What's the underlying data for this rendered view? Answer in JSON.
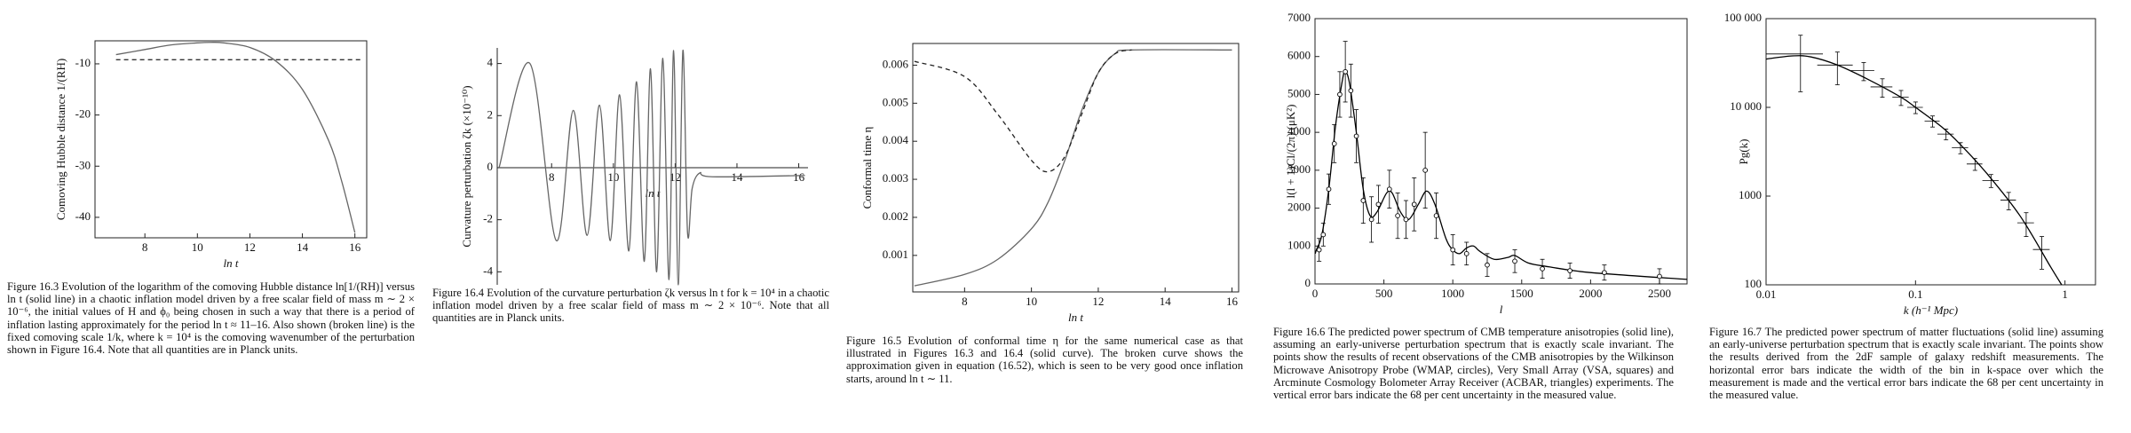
{
  "chart_data": [
    {
      "type": "line",
      "xlabel": "ln t",
      "ylabel": "Comoving Hubble distance 1/(RH)",
      "caption": "Figure 16.3 Evolution of the logarithm of the comoving Hubble distance ln[1/(RH)] versus ln t (solid line) in a chaotic inflation model driven by a free scalar field of mass m ∼ 2 × 10⁻⁶, the initial values of H and ϕ₀ being chosen in such a way that there is a period of inflation lasting approximately for the period ln t ≈ 11–16. Also shown (broken line) is the fixed comoving scale 1/k, where k = 10⁴ is the comoving wavenumber of the perturbation shown in Figure 16.4. Note that all quantities are in Planck units.",
      "xlim": [
        6.1,
        16.45
      ],
      "xticks": [
        8,
        10,
        12,
        14,
        16
      ],
      "ylim": [
        -44,
        -5.5
      ],
      "yticks": [
        -10,
        -20,
        -30,
        -40
      ],
      "series": [
        {
          "color": "#666666",
          "style": "solid",
          "x": [
            6.9,
            8,
            9,
            10,
            10.5,
            11,
            12,
            13,
            14,
            15,
            15.5,
            16
          ],
          "values": [
            -8.2,
            -7.2,
            -6.3,
            -5.9,
            -5.8,
            -5.9,
            -6.8,
            -9.5,
            -15,
            -25,
            -33,
            -43
          ]
        },
        {
          "color": "#333333",
          "style": "dashed",
          "x": [
            6.9,
            16.3
          ],
          "values": [
            -9.2,
            -9.2
          ]
        }
      ]
    },
    {
      "type": "line",
      "xlabel": "ln t",
      "ylabel": "Curvature perturbation ζk (×10⁻¹⁰)",
      "caption": "Figure 16.4 Evolution of the curvature perturbation ζk versus ln t for k = 10⁴ in a chaotic inflation model driven by a free scalar field of mass m ∼ 2 × 10⁻⁶. Note that all quantities are in Planck units.",
      "xlim": [
        6.24,
        16.3
      ],
      "xticks": [
        8,
        10,
        12,
        14,
        16
      ],
      "ylim": [
        -4.5,
        4.6
      ],
      "yticks": [
        4,
        2,
        0,
        -2,
        -4
      ],
      "series": [
        {
          "color": "#666666",
          "style": "solid",
          "x": [
            6.3,
            7.3,
            8.15,
            8.7,
            9.15,
            9.55,
            9.9,
            10.2,
            10.5,
            10.75,
            11.0,
            11.2,
            11.4,
            11.6,
            11.8,
            11.95,
            12.1,
            12.25,
            12.4,
            12.55,
            12.8,
            13.2,
            16.2
          ],
          "values": [
            0,
            4,
            -2.8,
            2.2,
            -2.6,
            2.4,
            -2.8,
            2.8,
            -3.2,
            3.3,
            -3.6,
            3.8,
            -4.0,
            4.2,
            -4.3,
            4.5,
            -4.5,
            4.5,
            -2.5,
            -0.8,
            -0.2,
            -0.35,
            -0.3
          ]
        }
      ]
    },
    {
      "type": "line",
      "xlabel": "ln t",
      "ylabel": "Conformal time η",
      "caption": "Figure 16.5 Evolution of conformal time η for the same numerical case as that illustrated in Figures 16.3 and 16.4 (solid curve). The broken curve shows the approximation given in equation (16.52), which is seen to be very good once inflation starts, around ln t ∼ 11.",
      "xlim": [
        6.45,
        16.2
      ],
      "xticks": [
        8,
        10,
        12,
        14,
        16
      ],
      "ylim": [
        4e-05,
        0.00657
      ],
      "yticks": [
        0.006,
        0.005,
        0.004,
        0.003,
        0.002,
        0.001
      ],
      "series": [
        {
          "color": "#666666",
          "style": "solid",
          "x": [
            6.5,
            8,
            9,
            10,
            10.5,
            11,
            11.5,
            12,
            12.5,
            13,
            16
          ],
          "values": [
            0.0002,
            0.0005,
            0.0009,
            0.0017,
            0.0024,
            0.0035,
            0.0048,
            0.0058,
            0.0063,
            0.0064,
            0.0064
          ]
        },
        {
          "color": "#222222",
          "style": "dashed",
          "x": [
            6.5,
            8,
            9,
            10,
            10.5,
            11,
            11.5,
            12,
            12.5,
            13
          ],
          "values": [
            0.0061,
            0.0057,
            0.0047,
            0.0035,
            0.0032,
            0.0036,
            0.0047,
            0.0058,
            0.0063,
            0.0064
          ]
        }
      ]
    },
    {
      "type": "line",
      "xlabel": "l",
      "ylabel": "l(l + 1)Cl/(2π)   (μK²)",
      "caption": "Figure 16.6 The predicted power spectrum of CMB temperature anisotropies (solid line), assuming an early-universe perturbation spectrum that is exactly scale invariant. The points show the results of recent observations of the CMB anisotropies by the Wilkinson Microwave Anisotropy Probe (WMAP, circles), Very Small Array (VSA, squares) and Arcminute Cosmology Bolometer Array Receiver (ACBAR, triangles) experiments. The vertical error bars indicate the 68 per cent uncertainty in the measured value.",
      "xlim": [
        0,
        2700
      ],
      "xticks": [
        0,
        500,
        1000,
        1500,
        2000,
        2500
      ],
      "ylim": [
        0,
        7000
      ],
      "yticks": [
        0,
        1000,
        2000,
        3000,
        4000,
        5000,
        6000,
        7000
      ],
      "series": [
        {
          "color": "#000000",
          "style": "solid",
          "x": [
            2,
            10,
            50,
            100,
            150,
            200,
            220,
            250,
            300,
            350,
            400,
            450,
            520,
            560,
            620,
            680,
            750,
            810,
            870,
            950,
            1000,
            1050,
            1100,
            1150,
            1200,
            1300,
            1400,
            1450,
            1550,
            1700,
            2000,
            2700
          ],
          "values": [
            800,
            900,
            1300,
            2500,
            4200,
            5400,
            5600,
            5300,
            4000,
            2500,
            1800,
            1900,
            2400,
            2400,
            1900,
            1700,
            2100,
            2450,
            2100,
            1200,
            900,
            800,
            950,
            1000,
            850,
            650,
            700,
            750,
            550,
            450,
            300,
            120
          ]
        },
        {
          "color": "#000000",
          "marker": "circle",
          "x": [
            30,
            60,
            100,
            140,
            180,
            220,
            260,
            300,
            350,
            410,
            460,
            540,
            600,
            660,
            720,
            800,
            880,
            1000,
            1100,
            1250,
            1450,
            1650,
            1850,
            2100,
            2500
          ],
          "values": [
            900,
            1300,
            2500,
            3700,
            5000,
            5600,
            5100,
            3900,
            2200,
            1700,
            2100,
            2500,
            1800,
            1700,
            2100,
            3000,
            1800,
            900,
            800,
            500,
            600,
            400,
            350,
            300,
            200
          ],
          "errors": [
            300,
            300,
            400,
            500,
            600,
            800,
            700,
            700,
            600,
            600,
            500,
            500,
            600,
            500,
            700,
            1000,
            600,
            400,
            300,
            300,
            300,
            250,
            200,
            200,
            200
          ]
        }
      ]
    },
    {
      "type": "line",
      "xlabel": "k (h⁻¹ Mpc)",
      "ylabel": "Pg(k)",
      "caption": "Figure 16.7 The predicted power spectrum of matter fluctuations (solid line) assuming an early-universe perturbation spectrum that is exactly scale invariant. The points show the results derived from the 2dF sample of galaxy redshift measurements. The horizontal error bars indicate the width of the bin in k-space over which the measurement is made and the vertical error bars indicate the 68 per cent uncertainty in the measured value.",
      "xscale": "log",
      "yscale": "log",
      "xlim": [
        0.01,
        1.6
      ],
      "xticks": [
        0.01,
        0.1,
        1
      ],
      "ylim": [
        100,
        100000
      ],
      "yticks": [
        {
          "value": 100000,
          "label": "100 000"
        },
        {
          "value": 10000,
          "label": "10 000"
        },
        1000,
        100
      ],
      "series": [
        {
          "color": "#000000",
          "style": "solid",
          "x": [
            0.01,
            0.015,
            0.02,
            0.03,
            0.05,
            0.08,
            0.1,
            0.15,
            0.2,
            0.3,
            0.5,
            0.8,
            0.95
          ],
          "values": [
            35000,
            38000,
            37000,
            30000,
            20000,
            13000,
            10000,
            6000,
            3800,
            1800,
            600,
            160,
            100
          ]
        },
        {
          "color": "#000000",
          "x": [
            0.017,
            0.03,
            0.045,
            0.06,
            0.08,
            0.1,
            0.13,
            0.16,
            0.2,
            0.25,
            0.32,
            0.42,
            0.55,
            0.7
          ],
          "values": [
            40000,
            30000,
            26000,
            17000,
            13000,
            10000,
            7000,
            5000,
            3500,
            2300,
            1500,
            900,
            500,
            250
          ],
          "errors": [
            25000,
            12000,
            6000,
            4000,
            2500,
            1500,
            1000,
            700,
            500,
            350,
            250,
            200,
            150,
            100
          ],
          "xerr": [
            0.007,
            0.008,
            0.008,
            0.01,
            0.01,
            0.012,
            0.015,
            0.02,
            0.025,
            0.03,
            0.04,
            0.05,
            0.07,
            0.09
          ]
        }
      ]
    }
  ]
}
